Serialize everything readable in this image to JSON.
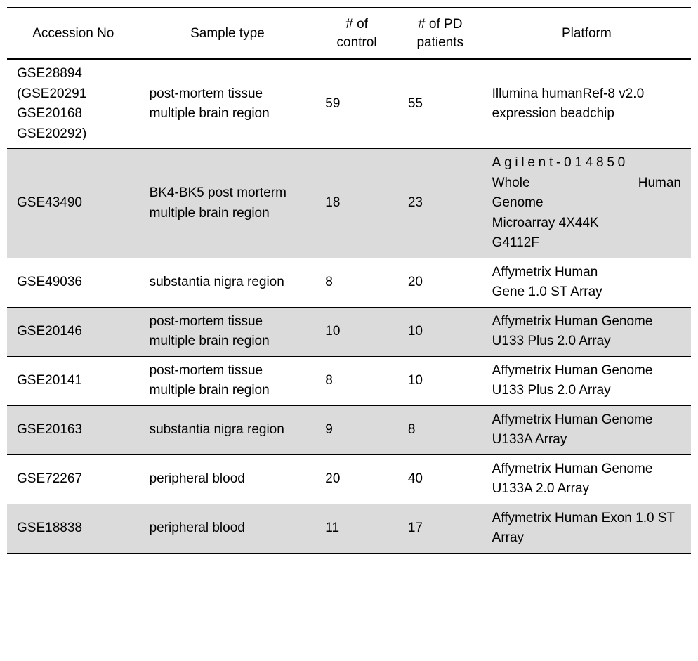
{
  "header": {
    "accession": "Accession No",
    "sample": "Sample type",
    "control": "# of\ncontrol",
    "pd": "# of PD\npatients",
    "platform": "Platform"
  },
  "rows": [
    {
      "accession": "GSE28894\n(GSE20291\nGSE20168\nGSE20292)",
      "sample": "post-mortem tissue multiple brain region",
      "control": "59",
      "pd": "55",
      "platform": "Illumina humanRef-8 v2.0 expression beadchip",
      "shaded": false
    },
    {
      "accession": "GSE43490",
      "sample": "BK4-BK5 post morterm multiple brain region",
      "control": "18",
      "pd": "23",
      "platform_lines": [
        "Agilent-014850",
        "Whole  Human",
        "Genome",
        "Microarray 4X44K",
        " G4112F"
      ],
      "shaded": true,
      "agilent": true
    },
    {
      "accession": "GSE49036",
      "sample": "substantia nigra region",
      "control": "8",
      "pd": "20",
      "platform": "Affymetrix Human\n Gene 1.0 ST Array",
      "shaded": false
    },
    {
      "accession": "GSE20146",
      "sample": "post-mortem tissue multiple brain region",
      "control": "10",
      "pd": "10",
      "platform": "Affymetrix Human Genome U133 Plus 2.0 Array",
      "shaded": true
    },
    {
      "accession": "GSE20141",
      "sample": "post-mortem tissue multiple brain region",
      "control": "8",
      "pd": "10",
      "platform": "Affymetrix Human Genome U133 Plus 2.0 Array",
      "shaded": false
    },
    {
      "accession": "GSE20163",
      "sample": "substantia nigra region",
      "control": "9",
      "pd": "8",
      "platform": "Affymetrix Human Genome U133A Array",
      "shaded": true
    },
    {
      "accession": "GSE72267",
      "sample": "peripheral blood",
      "control": "20",
      "pd": "40",
      "platform": "Affymetrix Human Genome U133A 2.0 Array",
      "shaded": false
    },
    {
      "accession": "GSE18838",
      "sample": "peripheral blood",
      "control": "11",
      "pd": "17",
      "platform": "Affymetrix Human Exon 1.0 ST Array",
      "shaded": true
    }
  ]
}
